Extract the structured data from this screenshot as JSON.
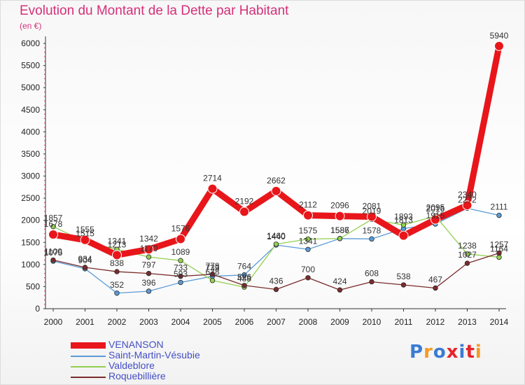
{
  "header": {
    "title": "Evolution du Montant de la Dette par Habitant",
    "subtitle": "(en €)"
  },
  "logo": {
    "text": "Proxiti",
    "colors": [
      "#3a7bd5",
      "#f59a23",
      "#3a7bd5",
      "#e8242a",
      "#3a7bd5",
      "#e8242a",
      "#f59a23"
    ]
  },
  "chart_data": {
    "type": "line",
    "x": [
      "2000",
      "2001",
      "2002",
      "2003",
      "2004",
      "2005",
      "2006",
      "2007",
      "2008",
      "2009",
      "2010",
      "2011",
      "2012",
      "2013",
      "2014"
    ],
    "ylim": [
      0,
      6000
    ],
    "yticks": [
      "0",
      "500",
      "1000",
      "1500",
      "2000",
      "2500",
      "3000",
      "3500",
      "4000",
      "4500",
      "5000",
      "5500",
      "6000"
    ],
    "grid": false,
    "legend_placement": "bottom-left",
    "series": [
      {
        "name": "VENANSON",
        "color": "#e8161b",
        "values": [
          1678,
          1555,
          1213,
          1342,
          1576,
          2714,
          2192,
          2662,
          2112,
          2096,
          2081,
          1652,
          2016,
          2340,
          5940
        ],
        "labels": [
          "1678",
          "1555",
          "1213",
          "1342",
          "1576",
          "2714",
          "2192",
          "2662",
          "2112",
          "2096",
          "2081",
          "",
          "2016",
          "2340",
          "5940"
        ]
      },
      {
        "name": "Saint-Martin-Vésubie",
        "color": "#5b9bd5",
        "values": [
          1075,
          904,
          352,
          396,
          593,
          733,
          764,
          1440,
          1341,
          1586,
          1578,
          1813,
          1915,
          2272,
          2111
        ],
        "labels": [
          "1075",
          "904",
          "352",
          "396",
          "593",
          "733",
          "764",
          "1440",
          "1341",
          "1586",
          "1578",
          "1813",
          "1915",
          "2272",
          "2111"
        ]
      },
      {
        "name": "Valdeblore",
        "color": "#92d050",
        "values": [
          1857,
          1515,
          1341,
          1170,
          1089,
          638,
          488,
          1460,
          1575,
          1587,
          2019,
          1893,
          2095,
          1238,
          1164
        ],
        "labels": [
          "1857",
          "1515",
          "1341",
          "1170",
          "1089",
          "638",
          "488",
          "1460",
          "1575",
          "1587",
          "2019",
          "1893",
          "2095",
          "1238",
          "1164"
        ]
      },
      {
        "name": "Roquebillière",
        "color": "#7b2c2c",
        "values": [
          1100,
          934,
          838,
          797,
          733,
          778,
          526,
          436,
          700,
          424,
          608,
          538,
          467,
          1027,
          1257
        ],
        "labels": [
          "1100",
          "934",
          "838",
          "797",
          "733",
          "778",
          "526",
          "436",
          "700",
          "424",
          "608",
          "538",
          "467",
          "1027",
          "1257"
        ]
      }
    ]
  }
}
